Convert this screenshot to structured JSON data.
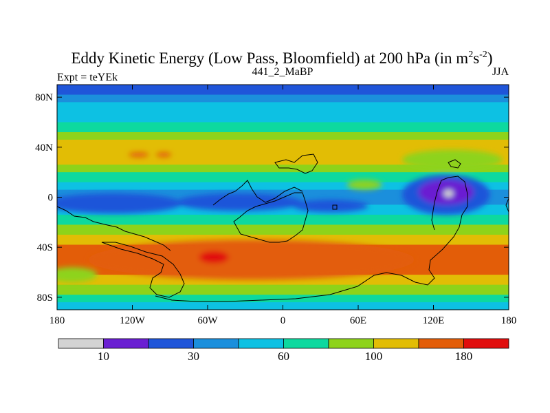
{
  "chart_data": {
    "type": "heatmap",
    "title_main": "Eddy Kinetic Energy (Low Pass, Bloomfield) at 200 hPa (in m",
    "title_sup1": "2",
    "title_mid": "s",
    "title_sup2": "-2",
    "title_end": ")",
    "center_subtitle": "441_2_MaBP",
    "left_subtitle": "Expt = teYEk",
    "right_subtitle": "JJA",
    "x_range": [
      -180,
      180
    ],
    "y_range": [
      -90,
      90
    ],
    "y_ticks": [
      {
        "label": "80N",
        "value": 80
      },
      {
        "label": "40N",
        "value": 40
      },
      {
        "label": "0",
        "value": 0
      },
      {
        "label": "40S",
        "value": -40
      },
      {
        "label": "80S",
        "value": -80
      }
    ],
    "x_ticks": [
      {
        "label": "180",
        "value": -180
      },
      {
        "label": "120W",
        "value": -120
      },
      {
        "label": "60W",
        "value": -60
      },
      {
        "label": "0",
        "value": 0
      },
      {
        "label": "60E",
        "value": 60
      },
      {
        "label": "120E",
        "value": 120
      },
      {
        "label": "180",
        "value": 180
      }
    ],
    "colorbar": {
      "colors": [
        "#d3d3d3",
        "#6a1fd2",
        "#1f55d9",
        "#1b8fdc",
        "#0dc1e3",
        "#0dd99f",
        "#8ed31a",
        "#e2bd05",
        "#e35d08",
        "#e10d0d"
      ],
      "labels": [
        {
          "label": "10",
          "boundary": 1
        },
        {
          "label": "30",
          "boundary": 3
        },
        {
          "label": "60",
          "boundary": 5
        },
        {
          "label": "100",
          "boundary": 7
        },
        {
          "label": "180",
          "boundary": 9
        }
      ]
    },
    "bands": [
      {
        "lat": [
          82,
          90
        ],
        "level": 2
      },
      {
        "lat": [
          76,
          82
        ],
        "level": 3
      },
      {
        "lat": [
          68,
          76
        ],
        "level": 4
      },
      {
        "lat": [
          60,
          68
        ],
        "level": 4
      },
      {
        "lat": [
          52,
          60
        ],
        "level": 5
      },
      {
        "lat": [
          46,
          52
        ],
        "level": 6
      },
      {
        "lat": [
          26,
          46
        ],
        "level": 7
      },
      {
        "lat": [
          20,
          26
        ],
        "level": 6
      },
      {
        "lat": [
          12,
          20
        ],
        "level": 5
      },
      {
        "lat": [
          6,
          12
        ],
        "level": 4
      },
      {
        "lat": [
          -6,
          6
        ],
        "level": 3
      },
      {
        "lat": [
          -14,
          -6
        ],
        "level": 4
      },
      {
        "lat": [
          -22,
          -14
        ],
        "level": 5
      },
      {
        "lat": [
          -30,
          -22
        ],
        "level": 6
      },
      {
        "lat": [
          -38,
          -30
        ],
        "level": 7
      },
      {
        "lat": [
          -62,
          -38
        ],
        "level": 8
      },
      {
        "lat": [
          -70,
          -62
        ],
        "level": 7
      },
      {
        "lat": [
          -78,
          -70
        ],
        "level": 6
      },
      {
        "lat": [
          -84,
          -78
        ],
        "level": 5
      },
      {
        "lat": [
          -90,
          -84
        ],
        "level": 4
      }
    ],
    "blobs": [
      {
        "lon": -150,
        "lat": -6,
        "rlon": 38,
        "rlat": 5,
        "level": 1
      },
      {
        "lon": -135,
        "lat": -5,
        "rlon": 55,
        "rlat": 8,
        "level": 2
      },
      {
        "lon": -35,
        "lat": -4,
        "rlon": 50,
        "rlat": 7,
        "level": 2
      },
      {
        "lon": 38,
        "lat": -7,
        "rlon": 30,
        "rlat": 5,
        "level": 2
      },
      {
        "lon": 130,
        "lat": 2,
        "rlon": 35,
        "rlat": 16,
        "level": 2
      },
      {
        "lon": 130,
        "lat": 4,
        "rlon": 22,
        "rlat": 10,
        "level": 1
      },
      {
        "lon": 132,
        "lat": 3,
        "rlon": 4,
        "rlat": 3,
        "level": 0
      },
      {
        "lon": 65,
        "lat": 10,
        "rlon": 14,
        "rlat": 4,
        "level": 6
      },
      {
        "lon": 135,
        "lat": 30,
        "rlon": 40,
        "rlat": 8,
        "level": 6
      },
      {
        "lon": -115,
        "lat": 34,
        "rlon": 8,
        "rlat": 2,
        "level": 8
      },
      {
        "lon": -95,
        "lat": 34,
        "rlon": 6,
        "rlat": 2,
        "level": 8
      },
      {
        "lon": -25,
        "lat": -50,
        "rlon": 130,
        "rlat": 16,
        "level": 8
      },
      {
        "lon": -55,
        "lat": -48,
        "rlon": 12,
        "rlat": 5,
        "level": 9
      },
      {
        "lon": -168,
        "lat": -62,
        "rlon": 20,
        "rlat": 6,
        "level": 6
      }
    ]
  }
}
